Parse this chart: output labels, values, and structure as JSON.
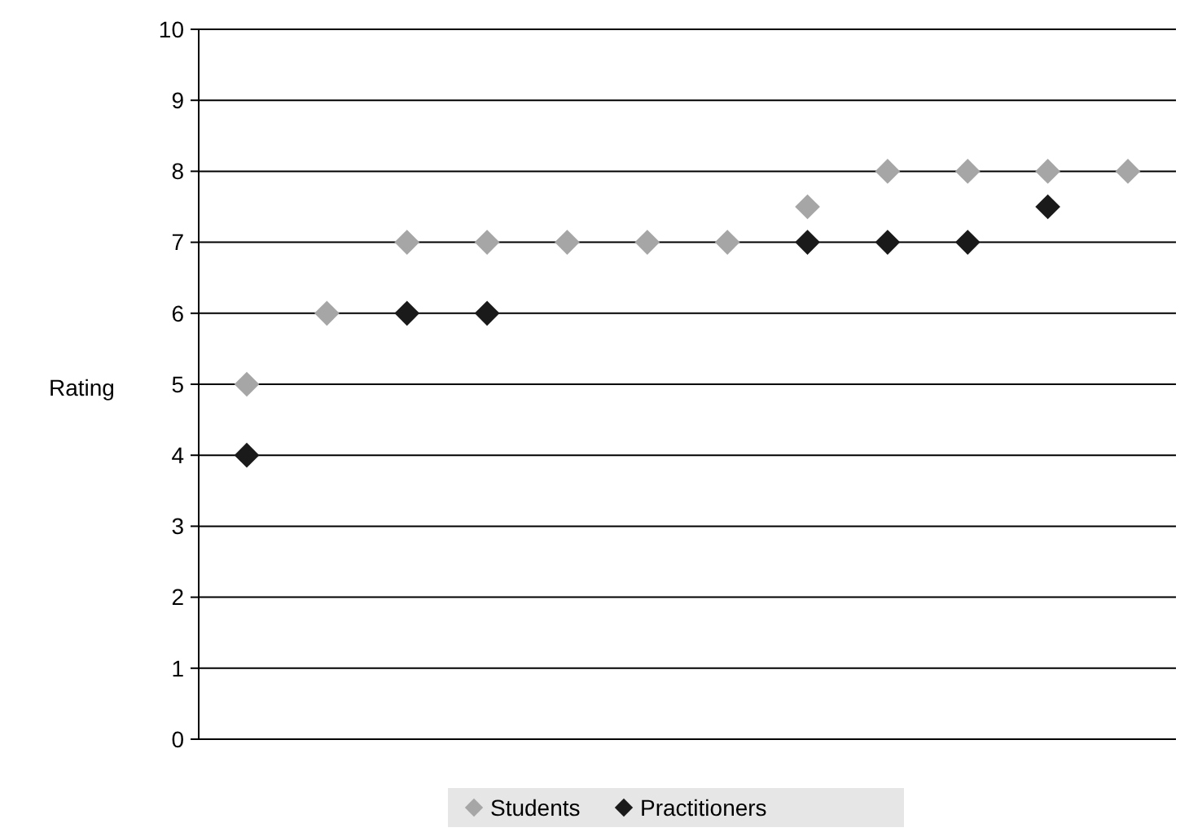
{
  "chart_data": {
    "type": "scatter",
    "ylabel": "Rating",
    "categories": [
      null,
      null,
      null,
      null,
      null,
      null,
      null,
      null,
      null,
      null,
      null,
      null
    ],
    "series": [
      {
        "name": "Students",
        "color": "#a6a6a6",
        "values": [
          5,
          6,
          7,
          7,
          7,
          7,
          7,
          7.5,
          8,
          8,
          8,
          8
        ]
      },
      {
        "name": "Practitioners",
        "color": "#1a1a1a",
        "values": [
          4,
          null,
          6,
          6,
          null,
          null,
          null,
          7,
          7,
          7,
          7.5,
          null
        ]
      }
    ],
    "ylim": [
      0,
      10
    ],
    "yticks": [
      0,
      1,
      2,
      3,
      4,
      5,
      6,
      7,
      8,
      9,
      10
    ],
    "grid": "y",
    "legend": "bottom",
    "marker": "diamond"
  }
}
